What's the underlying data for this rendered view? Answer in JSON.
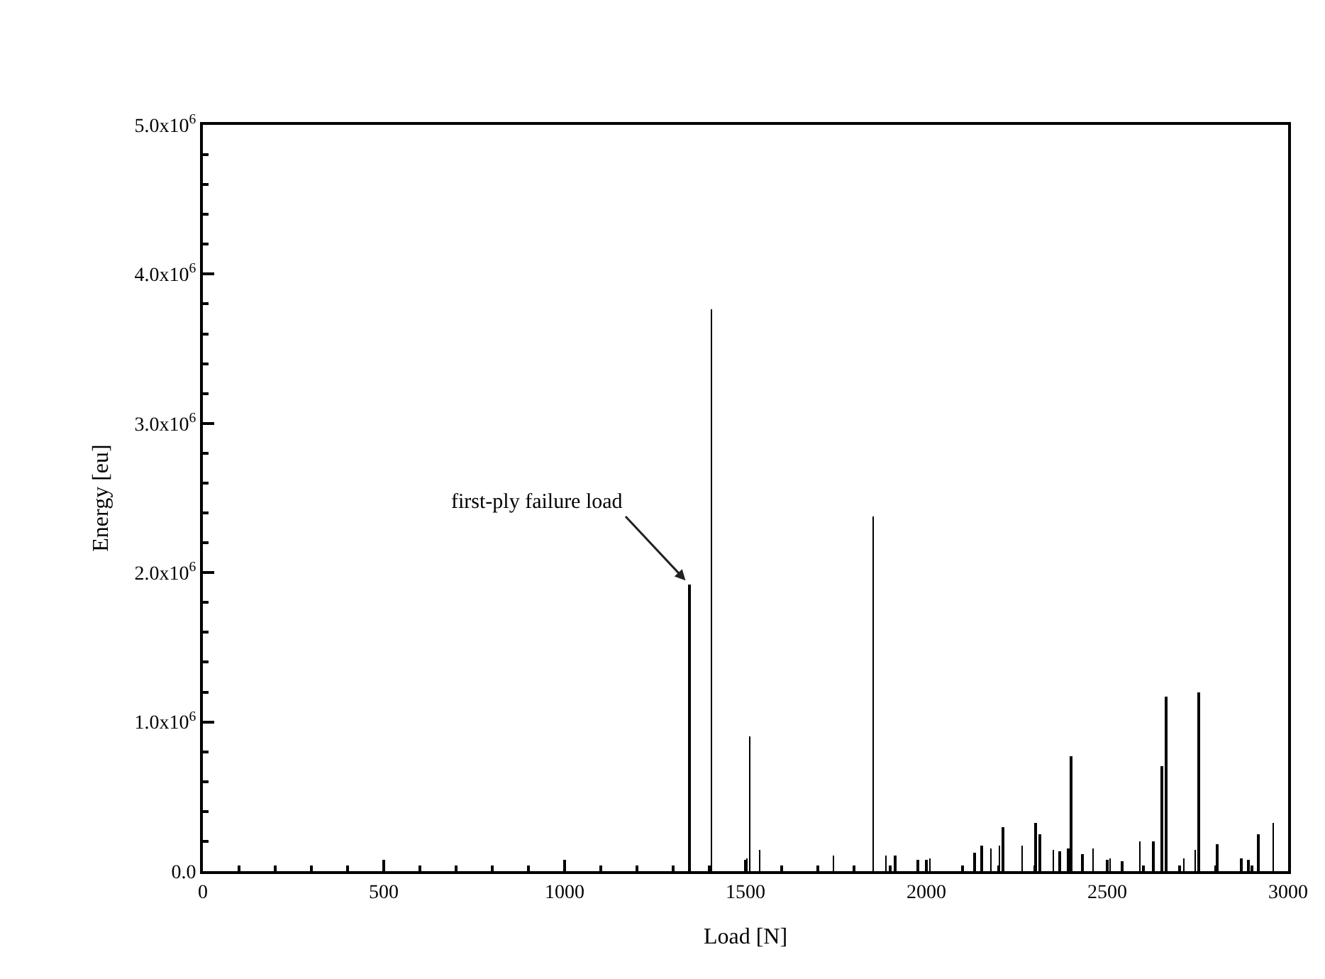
{
  "chart_data": {
    "type": "bar",
    "xlabel": "Load [N]",
    "ylabel": "Energy [eu]",
    "x": [
      1345,
      1405,
      1503,
      1511,
      1539,
      1744,
      1854,
      1888,
      1913,
      1977,
      2009,
      2133,
      2153,
      2179,
      2203,
      2212,
      2264,
      2302,
      2314,
      2352,
      2368,
      2392,
      2400,
      2432,
      2462,
      2508,
      2541,
      2591,
      2627,
      2651,
      2663,
      2711,
      2742,
      2753,
      2804,
      2870,
      2890,
      2918,
      2958
    ],
    "values": [
      1920000,
      3760000,
      90000,
      900000,
      140000,
      100000,
      2380000,
      100000,
      100000,
      80000,
      90000,
      120000,
      170000,
      150000,
      170000,
      290000,
      170000,
      320000,
      250000,
      140000,
      130000,
      150000,
      770000,
      110000,
      150000,
      90000,
      70000,
      200000,
      200000,
      700000,
      1170000,
      90000,
      140000,
      1200000,
      180000,
      90000,
      80000,
      250000,
      320000
    ],
    "color": "#000000",
    "xlim": [
      0,
      3000
    ],
    "xticks": [
      0,
      {
        "value": 100,
        "label": null
      },
      {
        "value": 200,
        "label": null
      },
      {
        "value": 300,
        "label": null
      },
      {
        "value": 400,
        "label": null
      },
      500,
      {
        "value": 600,
        "label": null
      },
      {
        "value": 700,
        "label": null
      },
      {
        "value": 800,
        "label": null
      },
      {
        "value": 900,
        "label": null
      },
      1000,
      {
        "value": 1100,
        "label": null
      },
      {
        "value": 1200,
        "label": null
      },
      {
        "value": 1300,
        "label": null
      },
      {
        "value": 1400,
        "label": null
      },
      1500,
      {
        "value": 1600,
        "label": null
      },
      {
        "value": 1700,
        "label": null
      },
      {
        "value": 1800,
        "label": null
      },
      {
        "value": 1900,
        "label": null
      },
      2000,
      {
        "value": 2100,
        "label": null
      },
      {
        "value": 2200,
        "label": null
      },
      {
        "value": 2300,
        "label": null
      },
      {
        "value": 2400,
        "label": null
      },
      2500,
      {
        "value": 2600,
        "label": null
      },
      {
        "value": 2700,
        "label": null
      },
      {
        "value": 2800,
        "label": null
      },
      {
        "value": 2900,
        "label": null
      },
      3000
    ],
    "ylim": [
      0,
      5000000
    ],
    "yticks": [
      {
        "value": 0,
        "label": "0.0"
      },
      {
        "value": 200000,
        "label": null
      },
      {
        "value": 400000,
        "label": null
      },
      {
        "value": 600000,
        "label": null
      },
      {
        "value": 800000,
        "label": null
      },
      {
        "value": 1000000,
        "label": "1.0x10$^{6}$"
      },
      {
        "value": 1200000,
        "label": null
      },
      {
        "value": 1400000,
        "label": null
      },
      {
        "value": 1600000,
        "label": null
      },
      {
        "value": 1800000,
        "label": null
      },
      {
        "value": 2000000,
        "label": "2.0x10$^{6}$"
      },
      {
        "value": 2200000,
        "label": null
      },
      {
        "value": 2400000,
        "label": null
      },
      {
        "value": 2600000,
        "label": null
      },
      {
        "value": 2800000,
        "label": null
      },
      {
        "value": 3000000,
        "label": "3.0x10$^{6}$"
      },
      {
        "value": 3200000,
        "label": null
      },
      {
        "value": 3400000,
        "label": null
      },
      {
        "value": 3600000,
        "label": null
      },
      {
        "value": 3800000,
        "label": null
      },
      {
        "value": 4000000,
        "label": "4.0x10$^{6}$"
      },
      {
        "value": 4200000,
        "label": null
      },
      {
        "value": 4400000,
        "label": null
      },
      {
        "value": 4600000,
        "label": null
      },
      {
        "value": 4800000,
        "label": null
      },
      {
        "value": 5000000,
        "label": "5.0x10$^{6}$"
      }
    ],
    "annotations": [
      {
        "text": "first-ply failure load",
        "x": 1345,
        "y": 1920000
      }
    ]
  }
}
